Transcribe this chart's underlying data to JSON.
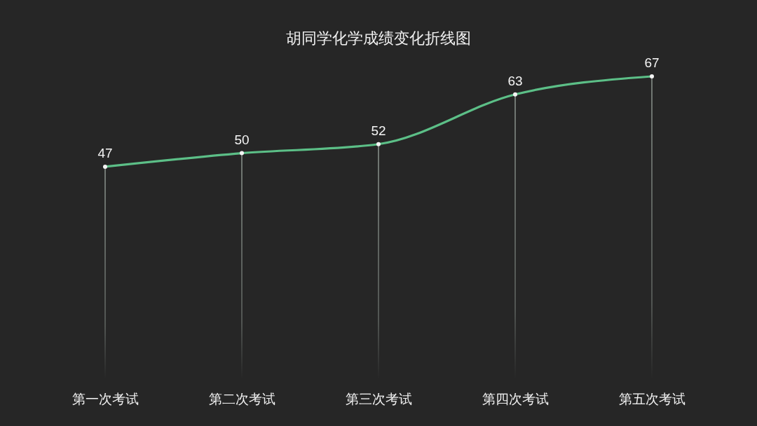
{
  "chart_data": {
    "type": "line",
    "title": "胡同学化学成绩变化折线图",
    "categories": [
      "第一次考试",
      "第二次考试",
      "第三次考试",
      "第四次考试",
      "第五次考试"
    ],
    "series": [
      {
        "color": "#5cbf87",
        "values": [
          47,
          50,
          52,
          63,
          67
        ]
      }
    ],
    "data_labels": true,
    "marker": "circle",
    "line_style": "solid",
    "grid": "x",
    "tick_labels": "x"
  }
}
